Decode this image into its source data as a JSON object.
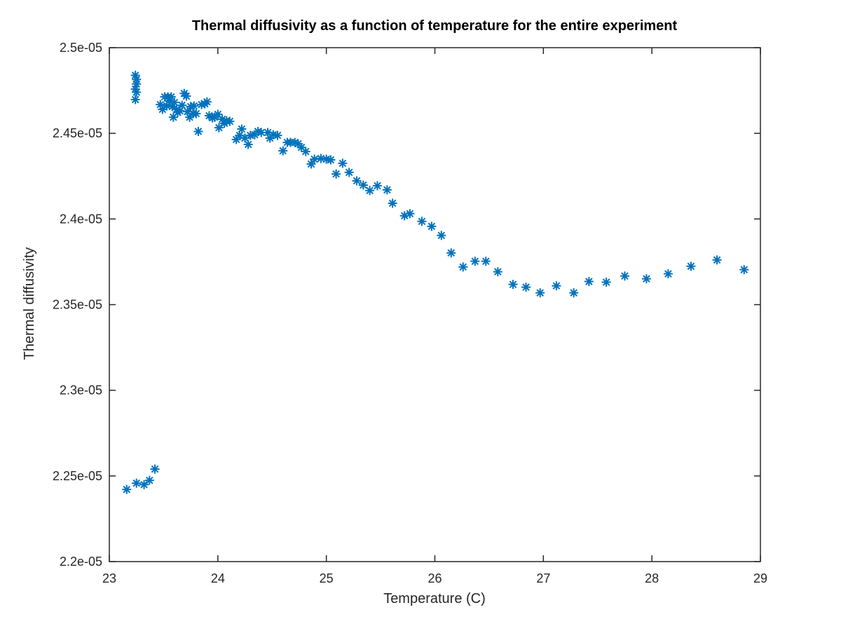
{
  "chart_data": {
    "type": "scatter",
    "title": "Thermal diffusivity as a function of temperature for the entire experiment",
    "xlabel": "Temperature (C)",
    "ylabel": "Thermal diffusivity",
    "xlim": [
      23,
      29
    ],
    "ylim": [
      2.2e-05,
      2.5e-05
    ],
    "x_ticks": [
      23,
      24,
      25,
      26,
      27,
      28,
      29
    ],
    "x_tick_labels": [
      "23",
      "24",
      "25",
      "26",
      "27",
      "28",
      "29"
    ],
    "y_ticks": [
      2.2e-05,
      2.25e-05,
      2.3e-05,
      2.35e-05,
      2.4e-05,
      2.45e-05,
      2.5e-05
    ],
    "y_tick_labels": [
      "2.2e-05",
      "2.25e-05",
      "2.3e-05",
      "2.35e-05",
      "2.4e-05",
      "2.45e-05",
      "2.5e-05"
    ],
    "grid": false,
    "legend": "none",
    "marker": "asterisk",
    "marker_color": "#0072BD",
    "axes_color": "#262626",
    "series": [
      {
        "points": [
          [
            23.16,
            2.2421e-05
          ],
          [
            23.25,
            2.2458e-05
          ],
          [
            23.32,
            2.2449e-05
          ],
          [
            23.37,
            2.2474e-05
          ],
          [
            23.42,
            2.254e-05
          ],
          [
            23.24,
            2.4839e-05
          ],
          [
            23.25,
            2.4815e-05
          ],
          [
            23.25,
            2.4788e-05
          ],
          [
            23.24,
            2.4758e-05
          ],
          [
            23.25,
            2.474e-05
          ],
          [
            23.24,
            2.4697e-05
          ],
          [
            23.47,
            2.4668e-05
          ],
          [
            23.49,
            2.464e-05
          ],
          [
            23.51,
            2.4713e-05
          ],
          [
            23.53,
            2.466e-05
          ],
          [
            23.54,
            2.4713e-05
          ],
          [
            23.55,
            2.4689e-05
          ],
          [
            23.57,
            2.4713e-05
          ],
          [
            23.58,
            2.4656e-05
          ],
          [
            23.59,
            2.4594e-05
          ],
          [
            23.6,
            2.468e-05
          ],
          [
            23.62,
            2.464e-05
          ],
          [
            23.63,
            2.4622e-05
          ],
          [
            23.65,
            2.4631e-05
          ],
          [
            23.67,
            2.4664e-05
          ],
          [
            23.69,
            2.4733e-05
          ],
          [
            23.71,
            2.4717e-05
          ],
          [
            23.72,
            2.4627e-05
          ],
          [
            23.74,
            2.4594e-05
          ],
          [
            23.75,
            2.4656e-05
          ],
          [
            23.77,
            2.4615e-05
          ],
          [
            23.78,
            2.466e-05
          ],
          [
            23.8,
            2.4615e-05
          ],
          [
            23.82,
            2.4511e-05
          ],
          [
            23.85,
            2.4668e-05
          ],
          [
            23.88,
            2.4672e-05
          ],
          [
            23.9,
            2.4684e-05
          ],
          [
            23.92,
            2.4603e-05
          ],
          [
            23.95,
            2.459e-05
          ],
          [
            23.97,
            2.4594e-05
          ],
          [
            24.0,
            2.4611e-05
          ],
          [
            24.01,
            2.4533e-05
          ],
          [
            24.04,
            2.4582e-05
          ],
          [
            24.06,
            2.4558e-05
          ],
          [
            24.08,
            2.4574e-05
          ],
          [
            24.11,
            2.457e-05
          ],
          [
            24.17,
            2.4464e-05
          ],
          [
            24.2,
            2.4488e-05
          ],
          [
            24.22,
            2.4525e-05
          ],
          [
            24.25,
            2.4472e-05
          ],
          [
            24.28,
            2.4435e-05
          ],
          [
            24.3,
            2.4488e-05
          ],
          [
            24.34,
            2.4492e-05
          ],
          [
            24.37,
            2.4511e-05
          ],
          [
            24.4,
            2.4505e-05
          ],
          [
            24.46,
            2.4505e-05
          ],
          [
            24.48,
            2.4472e-05
          ],
          [
            24.51,
            2.4492e-05
          ],
          [
            24.55,
            2.4488e-05
          ],
          [
            24.6,
            2.4398e-05
          ],
          [
            24.64,
            2.4447e-05
          ],
          [
            24.67,
            2.4447e-05
          ],
          [
            24.71,
            2.4447e-05
          ],
          [
            24.74,
            2.4439e-05
          ],
          [
            24.77,
            2.4418e-05
          ],
          [
            24.81,
            2.4394e-05
          ],
          [
            24.86,
            2.4321e-05
          ],
          [
            24.89,
            2.4349e-05
          ],
          [
            24.95,
            2.4353e-05
          ],
          [
            25.0,
            2.4349e-05
          ],
          [
            25.04,
            2.4345e-05
          ],
          [
            25.09,
            2.4263e-05
          ],
          [
            25.15,
            2.4325e-05
          ],
          [
            25.21,
            2.4272e-05
          ],
          [
            25.28,
            2.4223e-05
          ],
          [
            25.34,
            2.4198e-05
          ],
          [
            25.4,
            2.4166e-05
          ],
          [
            25.47,
            2.4194e-05
          ],
          [
            25.56,
            2.417e-05
          ],
          [
            25.61,
            2.4092e-05
          ],
          [
            25.72,
            2.4019e-05
          ],
          [
            25.77,
            2.4031e-05
          ],
          [
            25.88,
            2.3986e-05
          ],
          [
            25.97,
            2.3957e-05
          ],
          [
            26.06,
            2.3904e-05
          ],
          [
            26.15,
            2.3802e-05
          ],
          [
            26.26,
            2.372e-05
          ],
          [
            26.37,
            2.3753e-05
          ],
          [
            26.47,
            2.3753e-05
          ],
          [
            26.58,
            2.3692e-05
          ],
          [
            26.72,
            2.3618e-05
          ],
          [
            26.84,
            2.3602e-05
          ],
          [
            26.97,
            2.3569e-05
          ],
          [
            27.12,
            2.361e-05
          ],
          [
            27.28,
            2.3569e-05
          ],
          [
            27.42,
            2.3635e-05
          ],
          [
            27.58,
            2.3631e-05
          ],
          [
            27.75,
            2.3667e-05
          ],
          [
            27.95,
            2.3651e-05
          ],
          [
            28.15,
            2.368e-05
          ],
          [
            28.36,
            2.3724e-05
          ],
          [
            28.6,
            2.3761e-05
          ],
          [
            28.85,
            2.3704e-05
          ]
        ]
      }
    ]
  }
}
